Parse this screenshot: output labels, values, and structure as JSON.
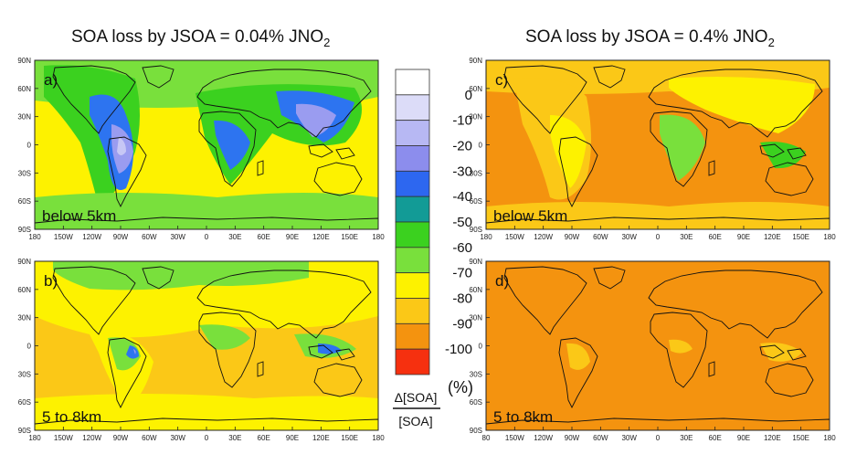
{
  "titles": {
    "left": {
      "text": "SOA loss by JSOA = 0.04% JNO",
      "sub": "2"
    },
    "right": {
      "text": "SOA loss by JSOA = 0.4% JNO",
      "sub": "2"
    }
  },
  "lat_ticks": [
    "90N",
    "60N",
    "30N",
    "0",
    "30S",
    "60S",
    "90S"
  ],
  "lon_ticks": [
    "180",
    "150W",
    "120W",
    "90W",
    "60W",
    "30W",
    "0",
    "30E",
    "60E",
    "90E",
    "120E",
    "150E",
    "180"
  ],
  "lon_ticks_bottom_right": [
    "80",
    "150W",
    "120W",
    "90W",
    "60W",
    "30W",
    "0",
    "30E",
    "60E",
    "90E",
    "120E",
    "150E",
    "180"
  ],
  "panels": [
    {
      "id": "a",
      "letter": "a)",
      "label": "below 5km",
      "bg": "#fdf200",
      "fields": [
        "#79e03c",
        "#3bd11f",
        "#2d74f0",
        "#9a9cf0",
        "#c7c7f5"
      ]
    },
    {
      "id": "b",
      "letter": "b)",
      "label": "5 to 8km",
      "bg": "#fbc817",
      "fields": [
        "#fdf200",
        "#79e03c",
        "#2d74f0",
        "#9a9cf0"
      ]
    },
    {
      "id": "c",
      "letter": "c)",
      "label": "below 5km",
      "bg": "#f4930f",
      "fields": [
        "#fbc817",
        "#fdf200",
        "#79e03c",
        "#3bd11f"
      ]
    },
    {
      "id": "d",
      "letter": "d)",
      "label": "5 to 8km",
      "bg": "#f4930f",
      "fields": [
        "#fbc817"
      ]
    }
  ],
  "colorbar": {
    "colors": [
      "#ffffff",
      "#dcdcf8",
      "#b7b8f3",
      "#8c8ded",
      "#2d67f0",
      "#129b96",
      "#3bd11f",
      "#79e03c",
      "#fdf200",
      "#fbc817",
      "#f4930f",
      "#f6300f"
    ],
    "ticks": [
      "0",
      "-10",
      "-20",
      "-30",
      "-40",
      "-50",
      "-60",
      "-70",
      "-80",
      "-90",
      "-100"
    ],
    "unit": "(%)",
    "numerator": "Δ[SOA]",
    "denominator": "[SOA]"
  }
}
